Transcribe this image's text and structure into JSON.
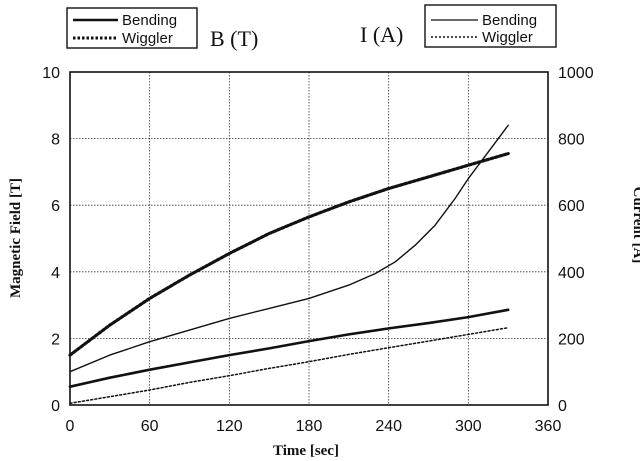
{
  "chart_data": {
    "type": "line",
    "xlabel": "Time [sec]",
    "x_ticks": [
      "0",
      "60",
      "120",
      "180",
      "240",
      "300",
      "360"
    ],
    "xlim": [
      0,
      360
    ],
    "left_axis": {
      "label": "Magnetic Field [T]",
      "header": "B (T)",
      "ylim": [
        0,
        10
      ],
      "ticks": [
        "0",
        "2",
        "4",
        "6",
        "8",
        "10"
      ]
    },
    "right_axis": {
      "label": "Current [A]",
      "header": "I (A)",
      "ylim": [
        0,
        1000
      ],
      "ticks": [
        "0",
        "200",
        "400",
        "600",
        "800",
        "1000"
      ]
    },
    "grid": true,
    "legends": [
      {
        "placement": "top-left",
        "axis": "left",
        "entries": [
          "Bending",
          "Wiggler"
        ]
      },
      {
        "placement": "top-right",
        "axis": "right",
        "entries": [
          "Bending",
          "Wiggler"
        ]
      }
    ],
    "series": [
      {
        "name": "Bending",
        "axis": "left",
        "style": "solid-thick",
        "x": [
          0,
          30,
          60,
          90,
          120,
          150,
          180,
          210,
          240,
          270,
          300,
          330
        ],
        "y": [
          0.55,
          0.82,
          1.06,
          1.28,
          1.5,
          1.7,
          1.92,
          2.12,
          2.3,
          2.46,
          2.64,
          2.86
        ]
      },
      {
        "name": "Wiggler",
        "axis": "left",
        "style": "dotted-thick",
        "x": [
          0,
          30,
          60,
          90,
          120,
          150,
          180,
          210,
          240,
          270,
          300,
          330
        ],
        "y": [
          1.5,
          2.4,
          3.2,
          3.9,
          4.55,
          5.15,
          5.65,
          6.1,
          6.5,
          6.85,
          7.2,
          7.55
        ]
      },
      {
        "name": "Bending",
        "axis": "right",
        "style": "solid-thin",
        "x": [
          0,
          30,
          60,
          90,
          120,
          150,
          180,
          210,
          230,
          245,
          260,
          275,
          290,
          300,
          315,
          330
        ],
        "y": [
          100,
          150,
          190,
          225,
          260,
          290,
          320,
          360,
          395,
          430,
          480,
          540,
          620,
          680,
          760,
          840
        ]
      },
      {
        "name": "Wiggler",
        "axis": "right",
        "style": "dotted-thin",
        "x": [
          0,
          30,
          60,
          90,
          120,
          150,
          180,
          210,
          240,
          270,
          300,
          330
        ],
        "y": [
          5,
          25,
          45,
          68,
          88,
          110,
          130,
          152,
          172,
          192,
          212,
          232
        ]
      }
    ]
  }
}
